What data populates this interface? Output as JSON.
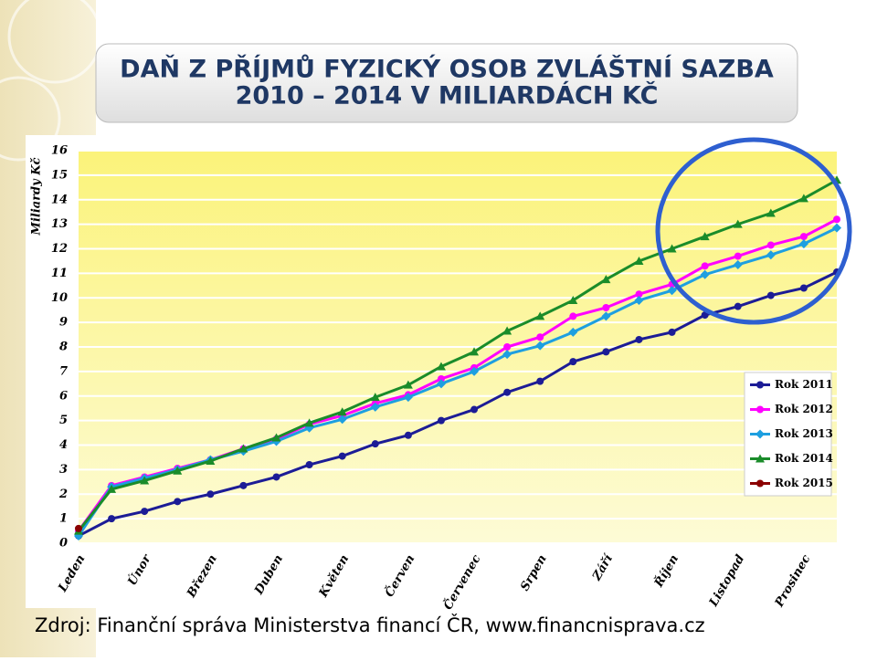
{
  "chart_data": {
    "type": "line",
    "title": "DAŇ Z PŘÍJMŮ FYZICKÝ OSOB ZVLÁŠTNÍ SAZBA",
    "subtitle": "2010 – 2014 V MILIARDÁCH KČ",
    "y_label": "Miliardy Kč",
    "source": "Zdroj: Finanční správa Ministerstva financí ČR, www.financnisprava.cz",
    "categories": [
      "Leden",
      null,
      "Únor",
      null,
      "Březen",
      null,
      "Duben",
      null,
      "Květen",
      null,
      "Červen",
      null,
      "Červenec",
      null,
      "Srpen",
      null,
      "Září",
      null,
      "Říjen",
      null,
      "Listopad",
      null,
      "Prosinec",
      null
    ],
    "ylim": [
      0,
      16
    ],
    "yticks": [
      0,
      1,
      2,
      3,
      4,
      5,
      6,
      7,
      8,
      9,
      10,
      11,
      12,
      13,
      14,
      15,
      16
    ],
    "grid": true,
    "legend": "right",
    "series": [
      {
        "name": "Rok 2011",
        "color": "#1c1c96",
        "marker": "circle",
        "values": [
          0.3,
          1.0,
          1.3,
          1.7,
          2.0,
          2.35,
          2.7,
          3.2,
          3.55,
          4.05,
          4.4,
          5.0,
          5.45,
          6.15,
          6.6,
          7.4,
          7.8,
          8.3,
          8.6,
          9.3,
          9.65,
          10.1,
          10.4,
          11.05
        ]
      },
      {
        "name": "Rok 2012",
        "color": "#ff00ff",
        "marker": "circle",
        "values": [
          0.5,
          2.35,
          2.7,
          3.05,
          3.4,
          3.85,
          4.25,
          4.85,
          5.2,
          5.7,
          6.05,
          6.7,
          7.15,
          8.0,
          8.4,
          9.25,
          9.6,
          10.15,
          10.55,
          11.3,
          11.7,
          12.15,
          12.5,
          13.2
        ]
      },
      {
        "name": "Rok 2013",
        "color": "#1e9fe0",
        "marker": "diamond",
        "values": [
          0.3,
          2.3,
          2.65,
          3.0,
          3.4,
          3.75,
          4.15,
          4.7,
          5.05,
          5.55,
          5.95,
          6.5,
          7.0,
          7.7,
          8.05,
          8.6,
          9.25,
          9.9,
          10.3,
          10.95,
          11.35,
          11.75,
          12.2,
          12.85
        ]
      },
      {
        "name": "Rok 2014",
        "color": "#1a8c2a",
        "marker": "triangle",
        "values": [
          0.5,
          2.2,
          2.55,
          2.95,
          3.35,
          3.85,
          4.3,
          4.9,
          5.35,
          5.95,
          6.45,
          7.2,
          7.8,
          8.65,
          9.25,
          9.9,
          10.75,
          11.5,
          12.0,
          12.5,
          13.0,
          13.45,
          14.05,
          14.8
        ]
      },
      {
        "name": "Rok 2015",
        "color": "#8b0000",
        "marker": "circle",
        "values": [
          0.6,
          null,
          null,
          null,
          null,
          null,
          null,
          null,
          null,
          null,
          null,
          null,
          null,
          null,
          null,
          null,
          null,
          null,
          null,
          null,
          null,
          null,
          null,
          null
        ]
      }
    ]
  }
}
